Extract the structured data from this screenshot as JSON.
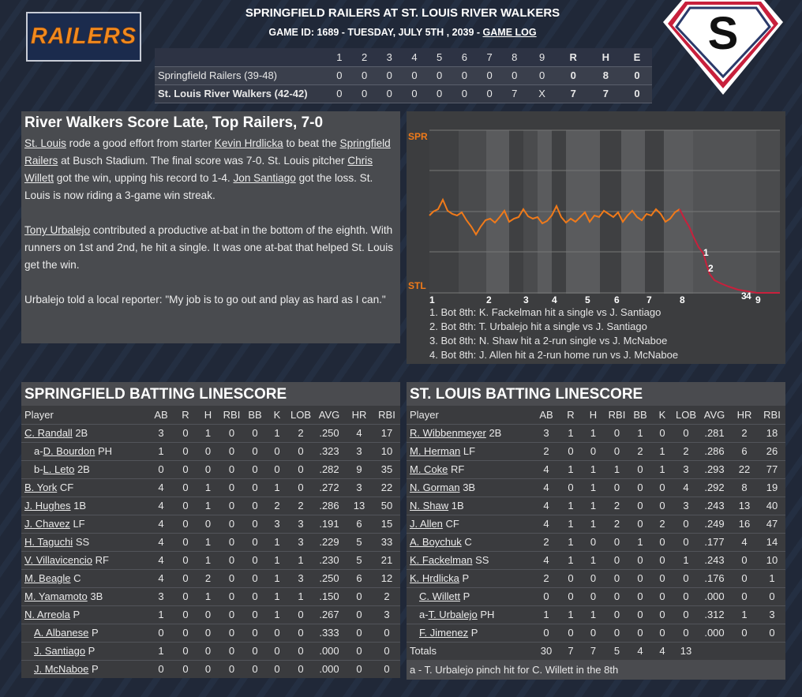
{
  "header": {
    "logo_text": "RAILERS",
    "title": "SPRINGFIELD RAILERS AT ST. LOUIS RIVER WALKERS",
    "subtitle": "GAME ID: 1689 - TUESDAY, JULY 5TH , 2039 - ",
    "game_log_link": "GAME LOG",
    "badge_letter": "S"
  },
  "linescore": {
    "columns": [
      "1",
      "2",
      "3",
      "4",
      "5",
      "6",
      "7",
      "8",
      "9",
      "R",
      "H",
      "E"
    ],
    "rows": [
      {
        "team": "Springfield Railers (39-48)",
        "innings": [
          "0",
          "0",
          "0",
          "0",
          "0",
          "0",
          "0",
          "0",
          "0"
        ],
        "R": "0",
        "H": "8",
        "E": "0"
      },
      {
        "team": "St. Louis River Walkers (42-42)",
        "innings": [
          "0",
          "0",
          "0",
          "0",
          "0",
          "0",
          "0",
          "7",
          "X"
        ],
        "R": "7",
        "H": "7",
        "E": "0"
      }
    ]
  },
  "recap": {
    "headline": "River Walkers Score Late, Top Railers, 7-0",
    "p1": {
      "a": "St. Louis",
      "b": " rode a good effort from starter ",
      "c": "Kevin Hrdlicka",
      "d": " to beat the ",
      "e": "Springfield Railers",
      "f": " at Busch Stadium. The final score was 7-0. St. Louis pitcher ",
      "g": "Chris Willett",
      "h": " got the win, upping his record to 1-4. ",
      "i": "Jon Santiago",
      "j": " got the loss. St. Louis is now riding a 3-game win streak."
    },
    "p2": {
      "a": "Tony Urbalejo",
      "b": " contributed a productive at-bat in the bottom of the eighth. With runners on 1st and 2nd, he hit a single. It was one at-bat that helped St. Louis get the win."
    },
    "p3": "Urbalejo told a local reporter: \"My job is to go out and play as hard as I can.\""
  },
  "win_prob": {
    "top_label": "SPR",
    "bottom_label": "STL",
    "label_color": "#f07a1a",
    "inning_labels": [
      "1",
      "2",
      "3",
      "4",
      "5",
      "6",
      "7",
      "8",
      "9"
    ],
    "marker_labels": [
      "1",
      "2",
      "3",
      "4"
    ],
    "notes": [
      "1. Bot 8th: K. Fackelman hit a single vs J. Santiago",
      "2. Bot 8th: T. Urbalejo hit a single vs J. Santiago",
      "3. Bot 8th: N. Shaw hit a 2-run single vs J. McNaboe",
      "4. Bot 8th: J. Allen hit a 2-run home run vs J. McNaboe"
    ]
  },
  "springfield_batting": {
    "title": "SPRINGFIELD BATTING LINESCORE",
    "columns": [
      "Player",
      "AB",
      "R",
      "H",
      "RBI",
      "BB",
      "K",
      "LOB",
      "AVG",
      "HR",
      "RBI"
    ],
    "rows": [
      {
        "prefix": "",
        "name": "C. Randall",
        "pos": "2B",
        "stats": [
          "3",
          "0",
          "1",
          "0",
          "0",
          "1",
          "2",
          ".250",
          "4",
          "17"
        ]
      },
      {
        "prefix": "a-",
        "name": "D. Bourdon",
        "pos": "PH",
        "stats": [
          "1",
          "0",
          "0",
          "0",
          "0",
          "0",
          "0",
          ".323",
          "3",
          "10"
        ]
      },
      {
        "prefix": "b-",
        "name": "L. Leto",
        "pos": "2B",
        "stats": [
          "0",
          "0",
          "0",
          "0",
          "0",
          "0",
          "0",
          ".282",
          "9",
          "35"
        ]
      },
      {
        "prefix": "",
        "name": "B. York",
        "pos": "CF",
        "stats": [
          "4",
          "0",
          "1",
          "0",
          "0",
          "1",
          "0",
          ".272",
          "3",
          "22"
        ]
      },
      {
        "prefix": "",
        "name": "J. Hughes",
        "pos": "1B",
        "stats": [
          "4",
          "0",
          "1",
          "0",
          "0",
          "2",
          "2",
          ".286",
          "13",
          "50"
        ]
      },
      {
        "prefix": "",
        "name": "J. Chavez",
        "pos": "LF",
        "stats": [
          "4",
          "0",
          "0",
          "0",
          "0",
          "3",
          "3",
          ".191",
          "6",
          "15"
        ]
      },
      {
        "prefix": "",
        "name": "H. Taguchi",
        "pos": "SS",
        "stats": [
          "4",
          "0",
          "1",
          "0",
          "0",
          "1",
          "3",
          ".229",
          "5",
          "33"
        ]
      },
      {
        "prefix": "",
        "name": "V. Villavicencio",
        "pos": "RF",
        "stats": [
          "4",
          "0",
          "1",
          "0",
          "0",
          "1",
          "1",
          ".230",
          "5",
          "21"
        ]
      },
      {
        "prefix": "",
        "name": "M. Beagle",
        "pos": "C",
        "stats": [
          "4",
          "0",
          "2",
          "0",
          "0",
          "1",
          "3",
          ".250",
          "6",
          "12"
        ]
      },
      {
        "prefix": "",
        "name": "M. Yamamoto",
        "pos": "3B",
        "stats": [
          "3",
          "0",
          "1",
          "0",
          "0",
          "1",
          "1",
          ".150",
          "0",
          "2"
        ]
      },
      {
        "prefix": "",
        "name": "N. Arreola",
        "pos": "P",
        "stats": [
          "1",
          "0",
          "0",
          "0",
          "0",
          "1",
          "0",
          ".267",
          "0",
          "3"
        ]
      },
      {
        "prefix": "",
        "name": "A. Albanese",
        "pos": "P",
        "indent": true,
        "stats": [
          "0",
          "0",
          "0",
          "0",
          "0",
          "0",
          "0",
          ".333",
          "0",
          "0"
        ]
      },
      {
        "prefix": "",
        "name": "J. Santiago",
        "pos": "P",
        "indent": true,
        "stats": [
          "1",
          "0",
          "0",
          "0",
          "0",
          "0",
          "0",
          ".000",
          "0",
          "0"
        ]
      },
      {
        "prefix": "",
        "name": "J. McNaboe",
        "pos": "P",
        "indent": true,
        "stats": [
          "0",
          "0",
          "0",
          "0",
          "0",
          "0",
          "0",
          ".000",
          "0",
          "0"
        ]
      }
    ]
  },
  "stlouis_batting": {
    "title": "ST. LOUIS BATTING LINESCORE",
    "columns": [
      "Player",
      "AB",
      "R",
      "H",
      "RBI",
      "BB",
      "K",
      "LOB",
      "AVG",
      "HR",
      "RBI"
    ],
    "rows": [
      {
        "prefix": "",
        "name": "R. Wibbenmeyer",
        "pos": "2B",
        "stats": [
          "3",
          "1",
          "1",
          "0",
          "1",
          "0",
          "0",
          ".281",
          "2",
          "18"
        ]
      },
      {
        "prefix": "",
        "name": "M. Herman",
        "pos": "LF",
        "stats": [
          "2",
          "0",
          "0",
          "0",
          "2",
          "1",
          "2",
          ".286",
          "6",
          "26"
        ]
      },
      {
        "prefix": "",
        "name": "M. Coke",
        "pos": "RF",
        "stats": [
          "4",
          "1",
          "1",
          "1",
          "0",
          "1",
          "3",
          ".293",
          "22",
          "77"
        ]
      },
      {
        "prefix": "",
        "name": "N. Gorman",
        "pos": "3B",
        "stats": [
          "4",
          "0",
          "1",
          "0",
          "0",
          "0",
          "4",
          ".292",
          "8",
          "19"
        ]
      },
      {
        "prefix": "",
        "name": "N. Shaw",
        "pos": "1B",
        "stats": [
          "4",
          "1",
          "1",
          "2",
          "0",
          "0",
          "3",
          ".243",
          "13",
          "40"
        ]
      },
      {
        "prefix": "",
        "name": "J. Allen",
        "pos": "CF",
        "stats": [
          "4",
          "1",
          "1",
          "2",
          "0",
          "2",
          "0",
          ".249",
          "16",
          "47"
        ]
      },
      {
        "prefix": "",
        "name": "A. Boychuk",
        "pos": "C",
        "stats": [
          "2",
          "1",
          "0",
          "0",
          "1",
          "0",
          "0",
          ".177",
          "4",
          "14"
        ]
      },
      {
        "prefix": "",
        "name": "K. Fackelman",
        "pos": "SS",
        "stats": [
          "4",
          "1",
          "1",
          "0",
          "0",
          "0",
          "1",
          ".243",
          "0",
          "10"
        ]
      },
      {
        "prefix": "",
        "name": "K. Hrdlicka",
        "pos": "P",
        "stats": [
          "2",
          "0",
          "0",
          "0",
          "0",
          "0",
          "0",
          ".176",
          "0",
          "1"
        ]
      },
      {
        "prefix": "",
        "name": "C. Willett",
        "pos": "P",
        "indent": true,
        "stats": [
          "0",
          "0",
          "0",
          "0",
          "0",
          "0",
          "0",
          ".000",
          "0",
          "0"
        ]
      },
      {
        "prefix": "a-",
        "name": "T. Urbalejo",
        "pos": "PH",
        "stats": [
          "1",
          "1",
          "1",
          "0",
          "0",
          "0",
          "0",
          ".312",
          "1",
          "3"
        ]
      },
      {
        "prefix": "",
        "name": "F. Jimenez",
        "pos": "P",
        "indent": true,
        "stats": [
          "0",
          "0",
          "0",
          "0",
          "0",
          "0",
          "0",
          ".000",
          "0",
          "0"
        ]
      }
    ],
    "totals": {
      "label": "Totals",
      "stats": [
        "30",
        "7",
        "7",
        "5",
        "4",
        "4",
        "13",
        "",
        "",
        ""
      ]
    },
    "footnote": "a - T. Urbalejo pinch hit for C. Willett in the 8th"
  },
  "colors": {
    "line_orange": "#f07a1a",
    "line_red": "#c8203c",
    "logo_orange": "#f08a1f"
  }
}
